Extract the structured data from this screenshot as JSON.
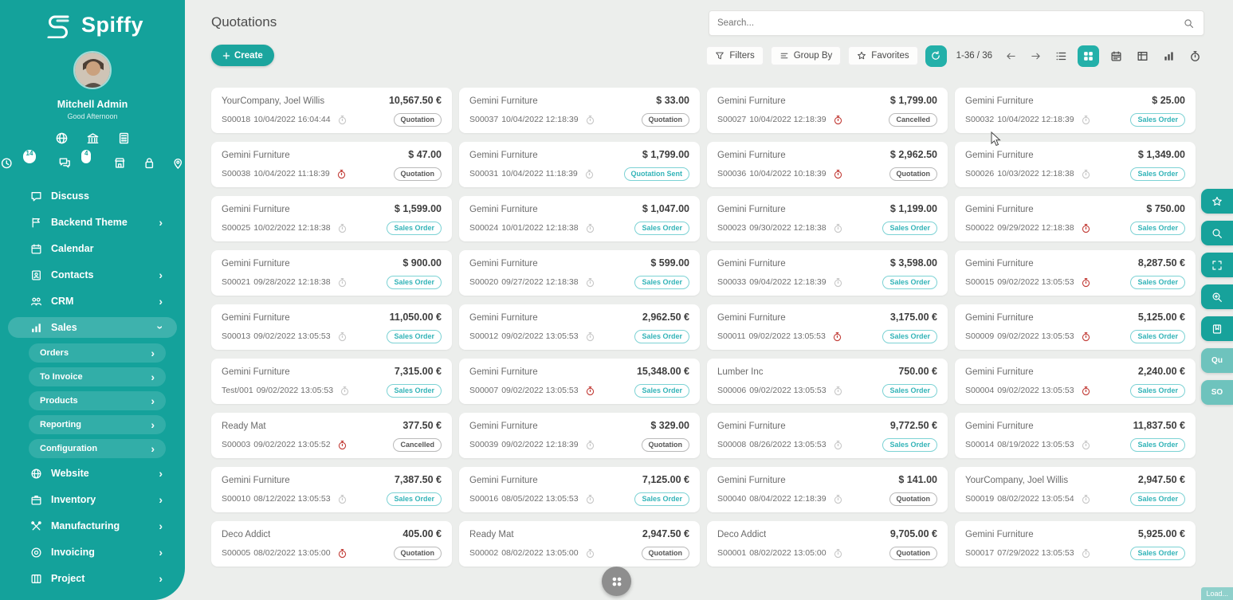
{
  "app": {
    "logo_text": "Spiffy"
  },
  "user": {
    "name": "Mitchell Admin",
    "greeting": "Good Afternoon",
    "activities_badge": "14",
    "messages_badge": "4"
  },
  "sidebar": {
    "menu_top": [
      {
        "label": "Discuss",
        "icon": "discuss",
        "arrow": "none",
        "state": "normal"
      },
      {
        "label": "Backend Theme",
        "icon": "theme",
        "arrow": "right",
        "state": "normal"
      },
      {
        "label": "Calendar",
        "icon": "calendar",
        "arrow": "none",
        "state": "normal"
      },
      {
        "label": "Contacts",
        "icon": "contacts",
        "arrow": "right",
        "state": "normal"
      },
      {
        "label": "CRM",
        "icon": "crm",
        "arrow": "right",
        "state": "normal"
      },
      {
        "label": "Sales",
        "icon": "sales",
        "arrow": "down",
        "state": "active"
      }
    ],
    "sales_submenu": [
      {
        "label": "Orders",
        "arrow": "right"
      },
      {
        "label": "To Invoice",
        "arrow": "right"
      },
      {
        "label": "Products",
        "arrow": "right"
      },
      {
        "label": "Reporting",
        "arrow": "right"
      },
      {
        "label": "Configuration",
        "arrow": "right"
      }
    ],
    "menu_bottom": [
      {
        "label": "Website",
        "icon": "website",
        "arrow": "right",
        "state": "normal"
      },
      {
        "label": "Inventory",
        "icon": "inventory",
        "arrow": "right",
        "state": "normal"
      },
      {
        "label": "Manufacturing",
        "icon": "manufacturing",
        "arrow": "right",
        "state": "normal"
      },
      {
        "label": "Invoicing",
        "icon": "invoicing",
        "arrow": "right",
        "state": "normal"
      },
      {
        "label": "Project",
        "icon": "project",
        "arrow": "right",
        "state": "normal"
      }
    ]
  },
  "header": {
    "title": "Quotations",
    "create_label": "Create",
    "search_placeholder": "Search..."
  },
  "controls": {
    "filters_label": "Filters",
    "group_by_label": "Group By",
    "favorites_label": "Favorites",
    "pager_text": "1-36 / 36"
  },
  "right_toolbar": {
    "qu_label": "Qu",
    "so_label": "SO"
  },
  "footer": {
    "loading_text": "Load..."
  },
  "colors": {
    "sidebar_teal": "#14a29b",
    "accent_teal": "#1ba59e",
    "badge_teal": "#33b4b8",
    "badge_gray": "#555555",
    "alert_red": "#c3403b",
    "background": "#eceeec"
  },
  "cards": [
    {
      "customer": "YourCompany, Joel Willis",
      "amount": "10,567.50 €",
      "reference": "S00018",
      "datetime": "10/04/2022 16:04:44",
      "clock": "gray",
      "status": "Quotation",
      "status_style": "gray"
    },
    {
      "customer": "Gemini Furniture",
      "amount": "$ 33.00",
      "reference": "S00037",
      "datetime": "10/04/2022 12:18:39",
      "clock": "gray",
      "status": "Quotation",
      "status_style": "gray"
    },
    {
      "customer": "Gemini Furniture",
      "amount": "$ 1,799.00",
      "reference": "S00027",
      "datetime": "10/04/2022 12:18:39",
      "clock": "red",
      "status": "Cancelled",
      "status_style": "gray"
    },
    {
      "customer": "Gemini Furniture",
      "amount": "$ 25.00",
      "reference": "S00032",
      "datetime": "10/04/2022 12:18:39",
      "clock": "gray",
      "status": "Sales Order",
      "status_style": "teal"
    },
    {
      "customer": "Gemini Furniture",
      "amount": "$ 47.00",
      "reference": "S00038",
      "datetime": "10/04/2022 11:18:39",
      "clock": "red",
      "status": "Quotation",
      "status_style": "gray"
    },
    {
      "customer": "Gemini Furniture",
      "amount": "$ 1,799.00",
      "reference": "S00031",
      "datetime": "10/04/2022 11:18:39",
      "clock": "gray",
      "status": "Quotation Sent",
      "status_style": "teal"
    },
    {
      "customer": "Gemini Furniture",
      "amount": "$ 2,962.50",
      "reference": "S00036",
      "datetime": "10/04/2022 10:18:39",
      "clock": "red",
      "status": "Quotation",
      "status_style": "gray"
    },
    {
      "customer": "Gemini Furniture",
      "amount": "$ 1,349.00",
      "reference": "S00026",
      "datetime": "10/03/2022 12:18:38",
      "clock": "gray",
      "status": "Sales Order",
      "status_style": "teal"
    },
    {
      "customer": "Gemini Furniture",
      "amount": "$ 1,599.00",
      "reference": "S00025",
      "datetime": "10/02/2022 12:18:38",
      "clock": "gray",
      "status": "Sales Order",
      "status_style": "teal"
    },
    {
      "customer": "Gemini Furniture",
      "amount": "$ 1,047.00",
      "reference": "S00024",
      "datetime": "10/01/2022 12:18:38",
      "clock": "gray",
      "status": "Sales Order",
      "status_style": "teal"
    },
    {
      "customer": "Gemini Furniture",
      "amount": "$ 1,199.00",
      "reference": "S00023",
      "datetime": "09/30/2022 12:18:38",
      "clock": "gray",
      "status": "Sales Order",
      "status_style": "teal"
    },
    {
      "customer": "Gemini Furniture",
      "amount": "$ 750.00",
      "reference": "S00022",
      "datetime": "09/29/2022 12:18:38",
      "clock": "red",
      "status": "Sales Order",
      "status_style": "teal"
    },
    {
      "customer": "Gemini Furniture",
      "amount": "$ 900.00",
      "reference": "S00021",
      "datetime": "09/28/2022 12:18:38",
      "clock": "gray",
      "status": "Sales Order",
      "status_style": "teal"
    },
    {
      "customer": "Gemini Furniture",
      "amount": "$ 599.00",
      "reference": "S00020",
      "datetime": "09/27/2022 12:18:38",
      "clock": "gray",
      "status": "Sales Order",
      "status_style": "teal"
    },
    {
      "customer": "Gemini Furniture",
      "amount": "$ 3,598.00",
      "reference": "S00033",
      "datetime": "09/04/2022 12:18:39",
      "clock": "gray",
      "status": "Sales Order",
      "status_style": "teal"
    },
    {
      "customer": "Gemini Furniture",
      "amount": "8,287.50 €",
      "reference": "S00015",
      "datetime": "09/02/2022 13:05:53",
      "clock": "red",
      "status": "Sales Order",
      "status_style": "teal"
    },
    {
      "customer": "Gemini Furniture",
      "amount": "11,050.00 €",
      "reference": "S00013",
      "datetime": "09/02/2022 13:05:53",
      "clock": "gray",
      "status": "Sales Order",
      "status_style": "teal"
    },
    {
      "customer": "Gemini Furniture",
      "amount": "2,962.50 €",
      "reference": "S00012",
      "datetime": "09/02/2022 13:05:53",
      "clock": "gray",
      "status": "Sales Order",
      "status_style": "teal"
    },
    {
      "customer": "Gemini Furniture",
      "amount": "3,175.00 €",
      "reference": "S00011",
      "datetime": "09/02/2022 13:05:53",
      "clock": "red",
      "status": "Sales Order",
      "status_style": "teal"
    },
    {
      "customer": "Gemini Furniture",
      "amount": "5,125.00 €",
      "reference": "S00009",
      "datetime": "09/02/2022 13:05:53",
      "clock": "red",
      "status": "Sales Order",
      "status_style": "teal"
    },
    {
      "customer": "Gemini Furniture",
      "amount": "7,315.00 €",
      "reference": "Test/001",
      "datetime": "09/02/2022 13:05:53",
      "clock": "gray",
      "status": "Sales Order",
      "status_style": "teal"
    },
    {
      "customer": "Gemini Furniture",
      "amount": "15,348.00 €",
      "reference": "S00007",
      "datetime": "09/02/2022 13:05:53",
      "clock": "red",
      "status": "Sales Order",
      "status_style": "teal"
    },
    {
      "customer": "Lumber Inc",
      "amount": "750.00 €",
      "reference": "S00006",
      "datetime": "09/02/2022 13:05:53",
      "clock": "gray",
      "status": "Sales Order",
      "status_style": "teal"
    },
    {
      "customer": "Gemini Furniture",
      "amount": "2,240.00 €",
      "reference": "S00004",
      "datetime": "09/02/2022 13:05:53",
      "clock": "red",
      "status": "Sales Order",
      "status_style": "teal"
    },
    {
      "customer": "Ready Mat",
      "amount": "377.50 €",
      "reference": "S00003",
      "datetime": "09/02/2022 13:05:52",
      "clock": "red",
      "status": "Cancelled",
      "status_style": "gray"
    },
    {
      "customer": "Gemini Furniture",
      "amount": "$ 329.00",
      "reference": "S00039",
      "datetime": "09/02/2022 12:18:39",
      "clock": "gray",
      "status": "Quotation",
      "status_style": "gray"
    },
    {
      "customer": "Gemini Furniture",
      "amount": "9,772.50 €",
      "reference": "S00008",
      "datetime": "08/26/2022 13:05:53",
      "clock": "gray",
      "status": "Sales Order",
      "status_style": "teal"
    },
    {
      "customer": "Gemini Furniture",
      "amount": "11,837.50 €",
      "reference": "S00014",
      "datetime": "08/19/2022 13:05:53",
      "clock": "gray",
      "status": "Sales Order",
      "status_style": "teal"
    },
    {
      "customer": "Gemini Furniture",
      "amount": "7,387.50 €",
      "reference": "S00010",
      "datetime": "08/12/2022 13:05:53",
      "clock": "gray",
      "status": "Sales Order",
      "status_style": "teal"
    },
    {
      "customer": "Gemini Furniture",
      "amount": "7,125.00 €",
      "reference": "S00016",
      "datetime": "08/05/2022 13:05:53",
      "clock": "gray",
      "status": "Sales Order",
      "status_style": "teal"
    },
    {
      "customer": "Gemini Furniture",
      "amount": "$ 141.00",
      "reference": "S00040",
      "datetime": "08/04/2022 12:18:39",
      "clock": "gray",
      "status": "Quotation",
      "status_style": "gray"
    },
    {
      "customer": "YourCompany, Joel Willis",
      "amount": "2,947.50 €",
      "reference": "S00019",
      "datetime": "08/02/2022 13:05:54",
      "clock": "gray",
      "status": "Sales Order",
      "status_style": "teal"
    },
    {
      "customer": "Deco Addict",
      "amount": "405.00 €",
      "reference": "S00005",
      "datetime": "08/02/2022 13:05:00",
      "clock": "red",
      "status": "Quotation",
      "status_style": "gray"
    },
    {
      "customer": "Ready Mat",
      "amount": "2,947.50 €",
      "reference": "S00002",
      "datetime": "08/02/2022 13:05:00",
      "clock": "gray",
      "status": "Quotation",
      "status_style": "gray"
    },
    {
      "customer": "Deco Addict",
      "amount": "9,705.00 €",
      "reference": "S00001",
      "datetime": "08/02/2022 13:05:00",
      "clock": "gray",
      "status": "Quotation",
      "status_style": "gray"
    },
    {
      "customer": "Gemini Furniture",
      "amount": "5,925.00 €",
      "reference": "S00017",
      "datetime": "07/29/2022 13:05:53",
      "clock": "gray",
      "status": "Sales Order",
      "status_style": "teal"
    }
  ]
}
